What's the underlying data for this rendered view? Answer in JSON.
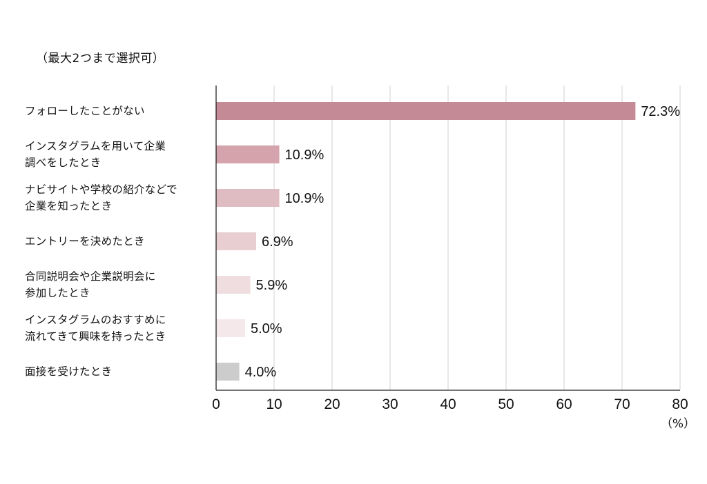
{
  "chart_data": {
    "type": "bar",
    "orientation": "horizontal",
    "subtitle": "（最大2つまで選択可）",
    "categories": [
      "フォローしたことがない",
      "インスタグラムを用いて企業\n調べをしたとき",
      "ナビサイトや学校の紹介などで\n企業を知ったとき",
      "エントリーを決めたとき",
      "合同説明会や企業説明会に\n参加したとき",
      "インスタグラムのおすすめに\n流れてきて興味を持ったとき",
      "面接を受けたとき"
    ],
    "values": [
      72.3,
      10.9,
      10.9,
      6.9,
      5.9,
      5.0,
      4.0
    ],
    "value_labels": [
      "72.3%",
      "10.9%",
      "10.9%",
      "6.9%",
      "5.9%",
      "5.0%",
      "4.0%"
    ],
    "bar_colors": [
      "#c48a96",
      "#d4a3ab",
      "#dfbcc1",
      "#e8cdd1",
      "#efdde0",
      "#f4e8ea",
      "#cccccc"
    ],
    "xlim": [
      0,
      80
    ],
    "xticks": [
      0,
      10,
      20,
      30,
      40,
      50,
      60,
      70,
      80
    ],
    "xunit": "（%）",
    "grid": true
  }
}
